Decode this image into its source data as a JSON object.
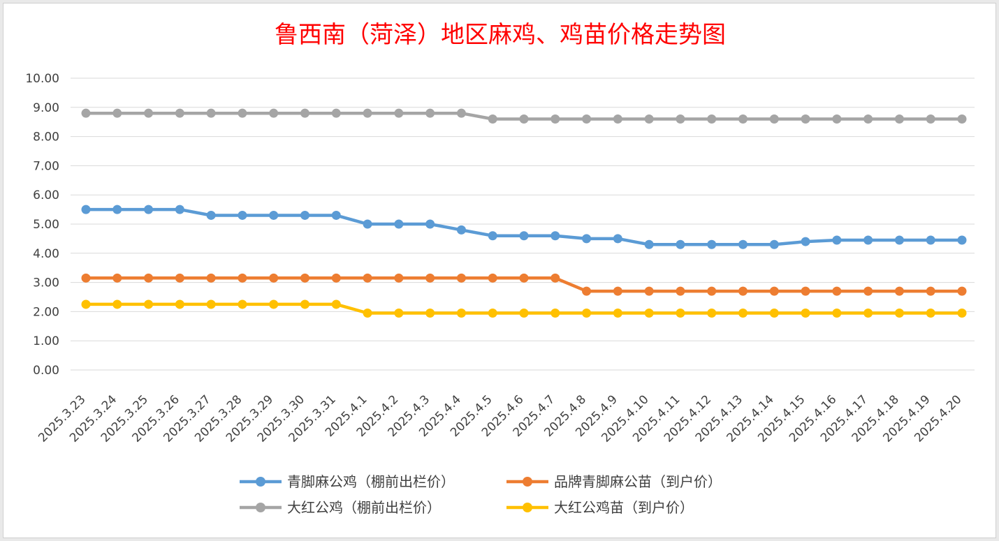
{
  "chart_data": {
    "type": "line",
    "title": "鲁西南（菏泽）地区麻鸡、鸡苗价格走势图",
    "xlabel": "",
    "ylabel": "",
    "ylim": [
      0,
      10
    ],
    "yticks": [
      "0.00",
      "1.00",
      "2.00",
      "3.00",
      "4.00",
      "5.00",
      "6.00",
      "7.00",
      "8.00",
      "9.00",
      "10.00"
    ],
    "grid": true,
    "legend_position": "bottom",
    "categories": [
      "2025.3.23",
      "2025.3.24",
      "2025.3.25",
      "2025.3.26",
      "2025.3.27",
      "2025.3.28",
      "2025.3.29",
      "2025.3.30",
      "2025.3.31",
      "2025.4.1",
      "2025.4.2",
      "2025.4.3",
      "2025.4.4",
      "2025.4.5",
      "2025.4.6",
      "2025.4.7",
      "2025.4.8",
      "2025.4.9",
      "2025.4.10",
      "2025.4.11",
      "2025.4.12",
      "2025.4.13",
      "2025.4.14",
      "2025.4.15",
      "2025.4.16",
      "2025.4.17",
      "2025.4.18",
      "2025.4.19",
      "2025.4.20"
    ],
    "series": [
      {
        "name": "青脚麻公鸡（棚前出栏价）",
        "color": "#5b9bd5",
        "values": [
          5.5,
          5.5,
          5.5,
          5.5,
          5.3,
          5.3,
          5.3,
          5.3,
          5.3,
          5.0,
          5.0,
          5.0,
          4.8,
          4.6,
          4.6,
          4.6,
          4.5,
          4.5,
          4.3,
          4.3,
          4.3,
          4.3,
          4.3,
          4.4,
          4.45,
          4.45,
          4.45,
          4.45,
          4.45
        ]
      },
      {
        "name": "品牌青脚麻公苗（到户价）",
        "color": "#ed7d31",
        "values": [
          3.15,
          3.15,
          3.15,
          3.15,
          3.15,
          3.15,
          3.15,
          3.15,
          3.15,
          3.15,
          3.15,
          3.15,
          3.15,
          3.15,
          3.15,
          3.15,
          2.7,
          2.7,
          2.7,
          2.7,
          2.7,
          2.7,
          2.7,
          2.7,
          2.7,
          2.7,
          2.7,
          2.7,
          2.7
        ]
      },
      {
        "name": "大红公鸡（棚前出栏价）",
        "color": "#a5a5a5",
        "values": [
          8.8,
          8.8,
          8.8,
          8.8,
          8.8,
          8.8,
          8.8,
          8.8,
          8.8,
          8.8,
          8.8,
          8.8,
          8.8,
          8.6,
          8.6,
          8.6,
          8.6,
          8.6,
          8.6,
          8.6,
          8.6,
          8.6,
          8.6,
          8.6,
          8.6,
          8.6,
          8.6,
          8.6,
          8.6
        ]
      },
      {
        "name": "大红公鸡苗（到户价）",
        "color": "#ffc000",
        "values": [
          2.25,
          2.25,
          2.25,
          2.25,
          2.25,
          2.25,
          2.25,
          2.25,
          2.25,
          1.95,
          1.95,
          1.95,
          1.95,
          1.95,
          1.95,
          1.95,
          1.95,
          1.95,
          1.95,
          1.95,
          1.95,
          1.95,
          1.95,
          1.95,
          1.95,
          1.95,
          1.95,
          1.95,
          1.95
        ]
      }
    ]
  }
}
